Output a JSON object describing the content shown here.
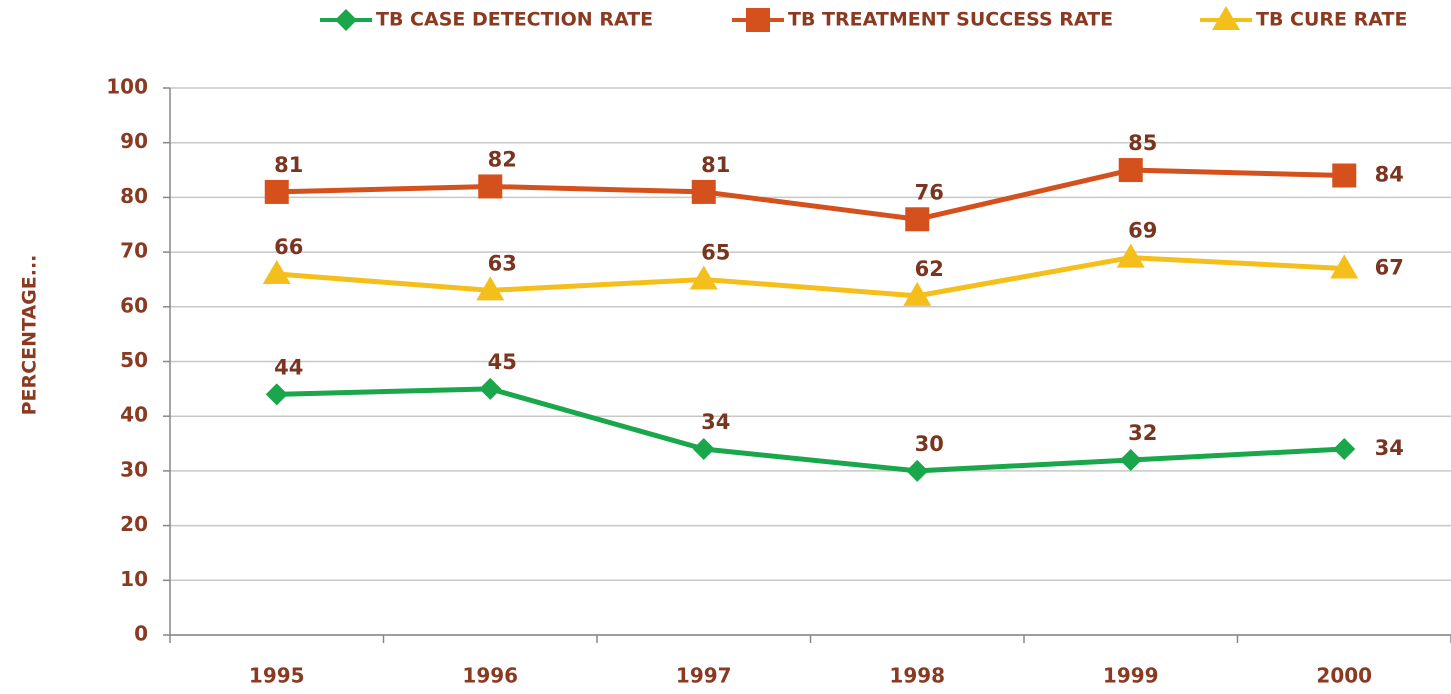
{
  "chart_data": {
    "type": "line",
    "y_label": "PERCENTAGE...",
    "categories": [
      "1995",
      "1996",
      "1997",
      "1998",
      "1999",
      "2000"
    ],
    "series": [
      {
        "name": "TB CASE DETECTION RATE",
        "color": "#1aa64a",
        "marker": "diamond",
        "values": [
          44,
          45,
          34,
          30,
          32,
          34
        ]
      },
      {
        "name": "TB TREATMENT SUCCESS RATE",
        "color": "#d4501c",
        "marker": "square",
        "values": [
          81,
          82,
          81,
          76,
          85,
          84
        ]
      },
      {
        "name": "TB CURE RATE",
        "color": "#f4bf1a",
        "marker": "triangle",
        "values": [
          66,
          63,
          65,
          62,
          69,
          67
        ]
      }
    ],
    "ylim": [
      0,
      100
    ],
    "yticks": [
      0,
      10,
      20,
      30,
      40,
      50,
      60,
      70,
      80,
      90,
      100
    ],
    "grid": true,
    "legend": "top"
  }
}
